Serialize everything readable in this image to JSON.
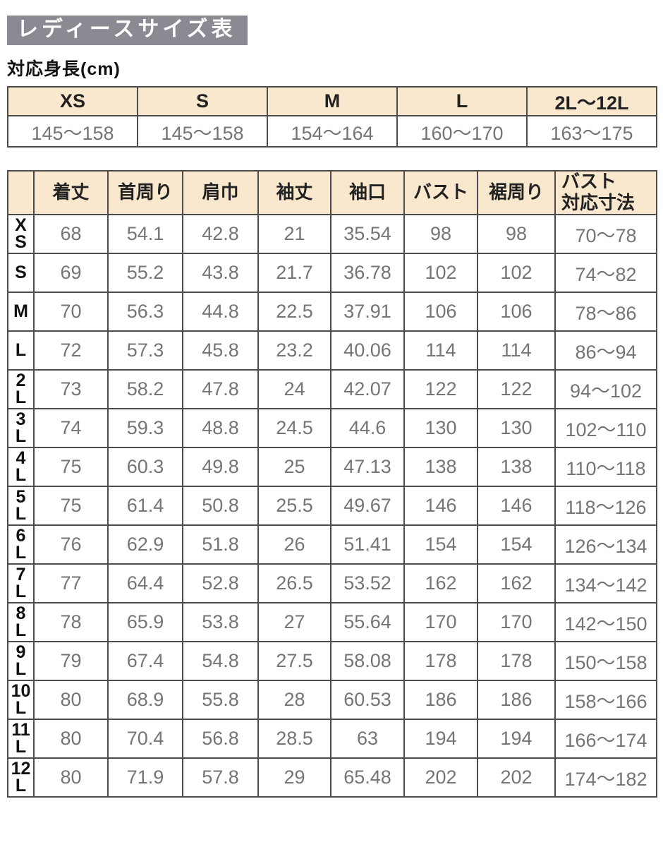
{
  "page": {
    "title": "レディースサイズ表",
    "subtitle": "対応身長(cm)"
  },
  "colors": {
    "title_bg": "#8b8a93",
    "title_text": "#fdfdfd",
    "header_bg": "#f9e8cd",
    "border": "#4c4c4c",
    "data_text": "#757575",
    "label_text": "#111111"
  },
  "height_table": {
    "columns": [
      "XS",
      "S",
      "M",
      "L",
      "2L〜12L"
    ],
    "values": [
      "145〜158",
      "145〜158",
      "154〜164",
      "160〜170",
      "163〜175"
    ]
  },
  "size_table": {
    "corner_label": "",
    "headers": [
      "着丈",
      "首周り",
      "肩巾",
      "袖丈",
      "袖口",
      "バスト",
      "裾周り",
      "バスト\n対応寸法"
    ],
    "rows": [
      {
        "size": "X\nS",
        "values": [
          "68",
          "54.1",
          "42.8",
          "21",
          "35.54",
          "98",
          "98",
          "70〜78"
        ]
      },
      {
        "size": "S",
        "values": [
          "69",
          "55.2",
          "43.8",
          "21.7",
          "36.78",
          "102",
          "102",
          "74〜82"
        ]
      },
      {
        "size": "M",
        "values": [
          "70",
          "56.3",
          "44.8",
          "22.5",
          "37.91",
          "106",
          "106",
          "78〜86"
        ]
      },
      {
        "size": "L",
        "values": [
          "72",
          "57.3",
          "45.8",
          "23.2",
          "40.06",
          "114",
          "114",
          "86〜94"
        ]
      },
      {
        "size": "2\nL",
        "values": [
          "73",
          "58.2",
          "47.8",
          "24",
          "42.07",
          "122",
          "122",
          "94〜102"
        ]
      },
      {
        "size": "3\nL",
        "values": [
          "74",
          "59.3",
          "48.8",
          "24.5",
          "44.6",
          "130",
          "130",
          "102〜110"
        ]
      },
      {
        "size": "4\nL",
        "values": [
          "75",
          "60.3",
          "49.8",
          "25",
          "47.13",
          "138",
          "138",
          "110〜118"
        ]
      },
      {
        "size": "5\nL",
        "values": [
          "75",
          "61.4",
          "50.8",
          "25.5",
          "49.67",
          "146",
          "146",
          "118〜126"
        ]
      },
      {
        "size": "6\nL",
        "values": [
          "76",
          "62.9",
          "51.8",
          "26",
          "51.41",
          "154",
          "154",
          "126〜134"
        ]
      },
      {
        "size": "7\nL",
        "values": [
          "77",
          "64.4",
          "52.8",
          "26.5",
          "53.52",
          "162",
          "162",
          "134〜142"
        ]
      },
      {
        "size": "8\nL",
        "values": [
          "78",
          "65.9",
          "53.8",
          "27",
          "55.64",
          "170",
          "170",
          "142〜150"
        ]
      },
      {
        "size": "9\nL",
        "values": [
          "79",
          "67.4",
          "54.8",
          "27.5",
          "58.08",
          "178",
          "178",
          "150〜158"
        ]
      },
      {
        "size": "10\nL",
        "values": [
          "80",
          "68.9",
          "55.8",
          "28",
          "60.53",
          "186",
          "186",
          "158〜166"
        ]
      },
      {
        "size": "11\nL",
        "values": [
          "80",
          "70.4",
          "56.8",
          "28.5",
          "63",
          "194",
          "194",
          "166〜174"
        ]
      },
      {
        "size": "12\nL",
        "values": [
          "80",
          "71.9",
          "57.8",
          "29",
          "65.48",
          "202",
          "202",
          "174〜182"
        ]
      }
    ]
  }
}
